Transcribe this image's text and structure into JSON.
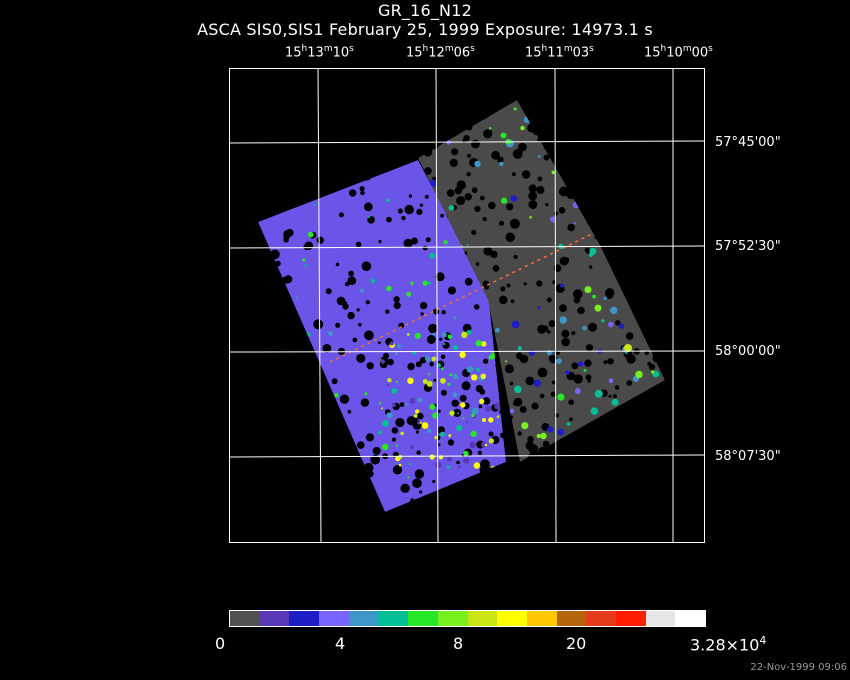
{
  "header": {
    "title": "GR_16_N12",
    "subtitle": "ASCA SIS0,SIS1 February 25, 1999 Exposure: 14973.1 s"
  },
  "axes": {
    "ra_ticks": [
      {
        "h": "15",
        "m": "13",
        "s": "10"
      },
      {
        "h": "15",
        "m": "12",
        "s": "06"
      },
      {
        "h": "15",
        "m": "11",
        "s": "03"
      },
      {
        "h": "15",
        "m": "10",
        "s": "00"
      }
    ],
    "dec_ticks": [
      "57°45'00\"",
      "57°52'30\"",
      "58°00'00\"",
      "58°07'30\""
    ]
  },
  "colorbar": {
    "labels": {
      "l0": "0",
      "l1": "4",
      "l2": "8",
      "l3": "20",
      "l4_base": "3.28×10",
      "l4_exp": "4"
    },
    "colors": [
      "#505050",
      "#5a37b4",
      "#1e1ec8",
      "#7864ff",
      "#3c96c8",
      "#00be96",
      "#28e628",
      "#78f01e",
      "#c8e614",
      "#ffff00",
      "#ffc800",
      "#b4640a",
      "#e63c1e",
      "#ff1e00",
      "#e6e6e6",
      "#ffffff"
    ]
  },
  "footer": {
    "timestamp": "22-Nov-1999 09:06"
  }
}
